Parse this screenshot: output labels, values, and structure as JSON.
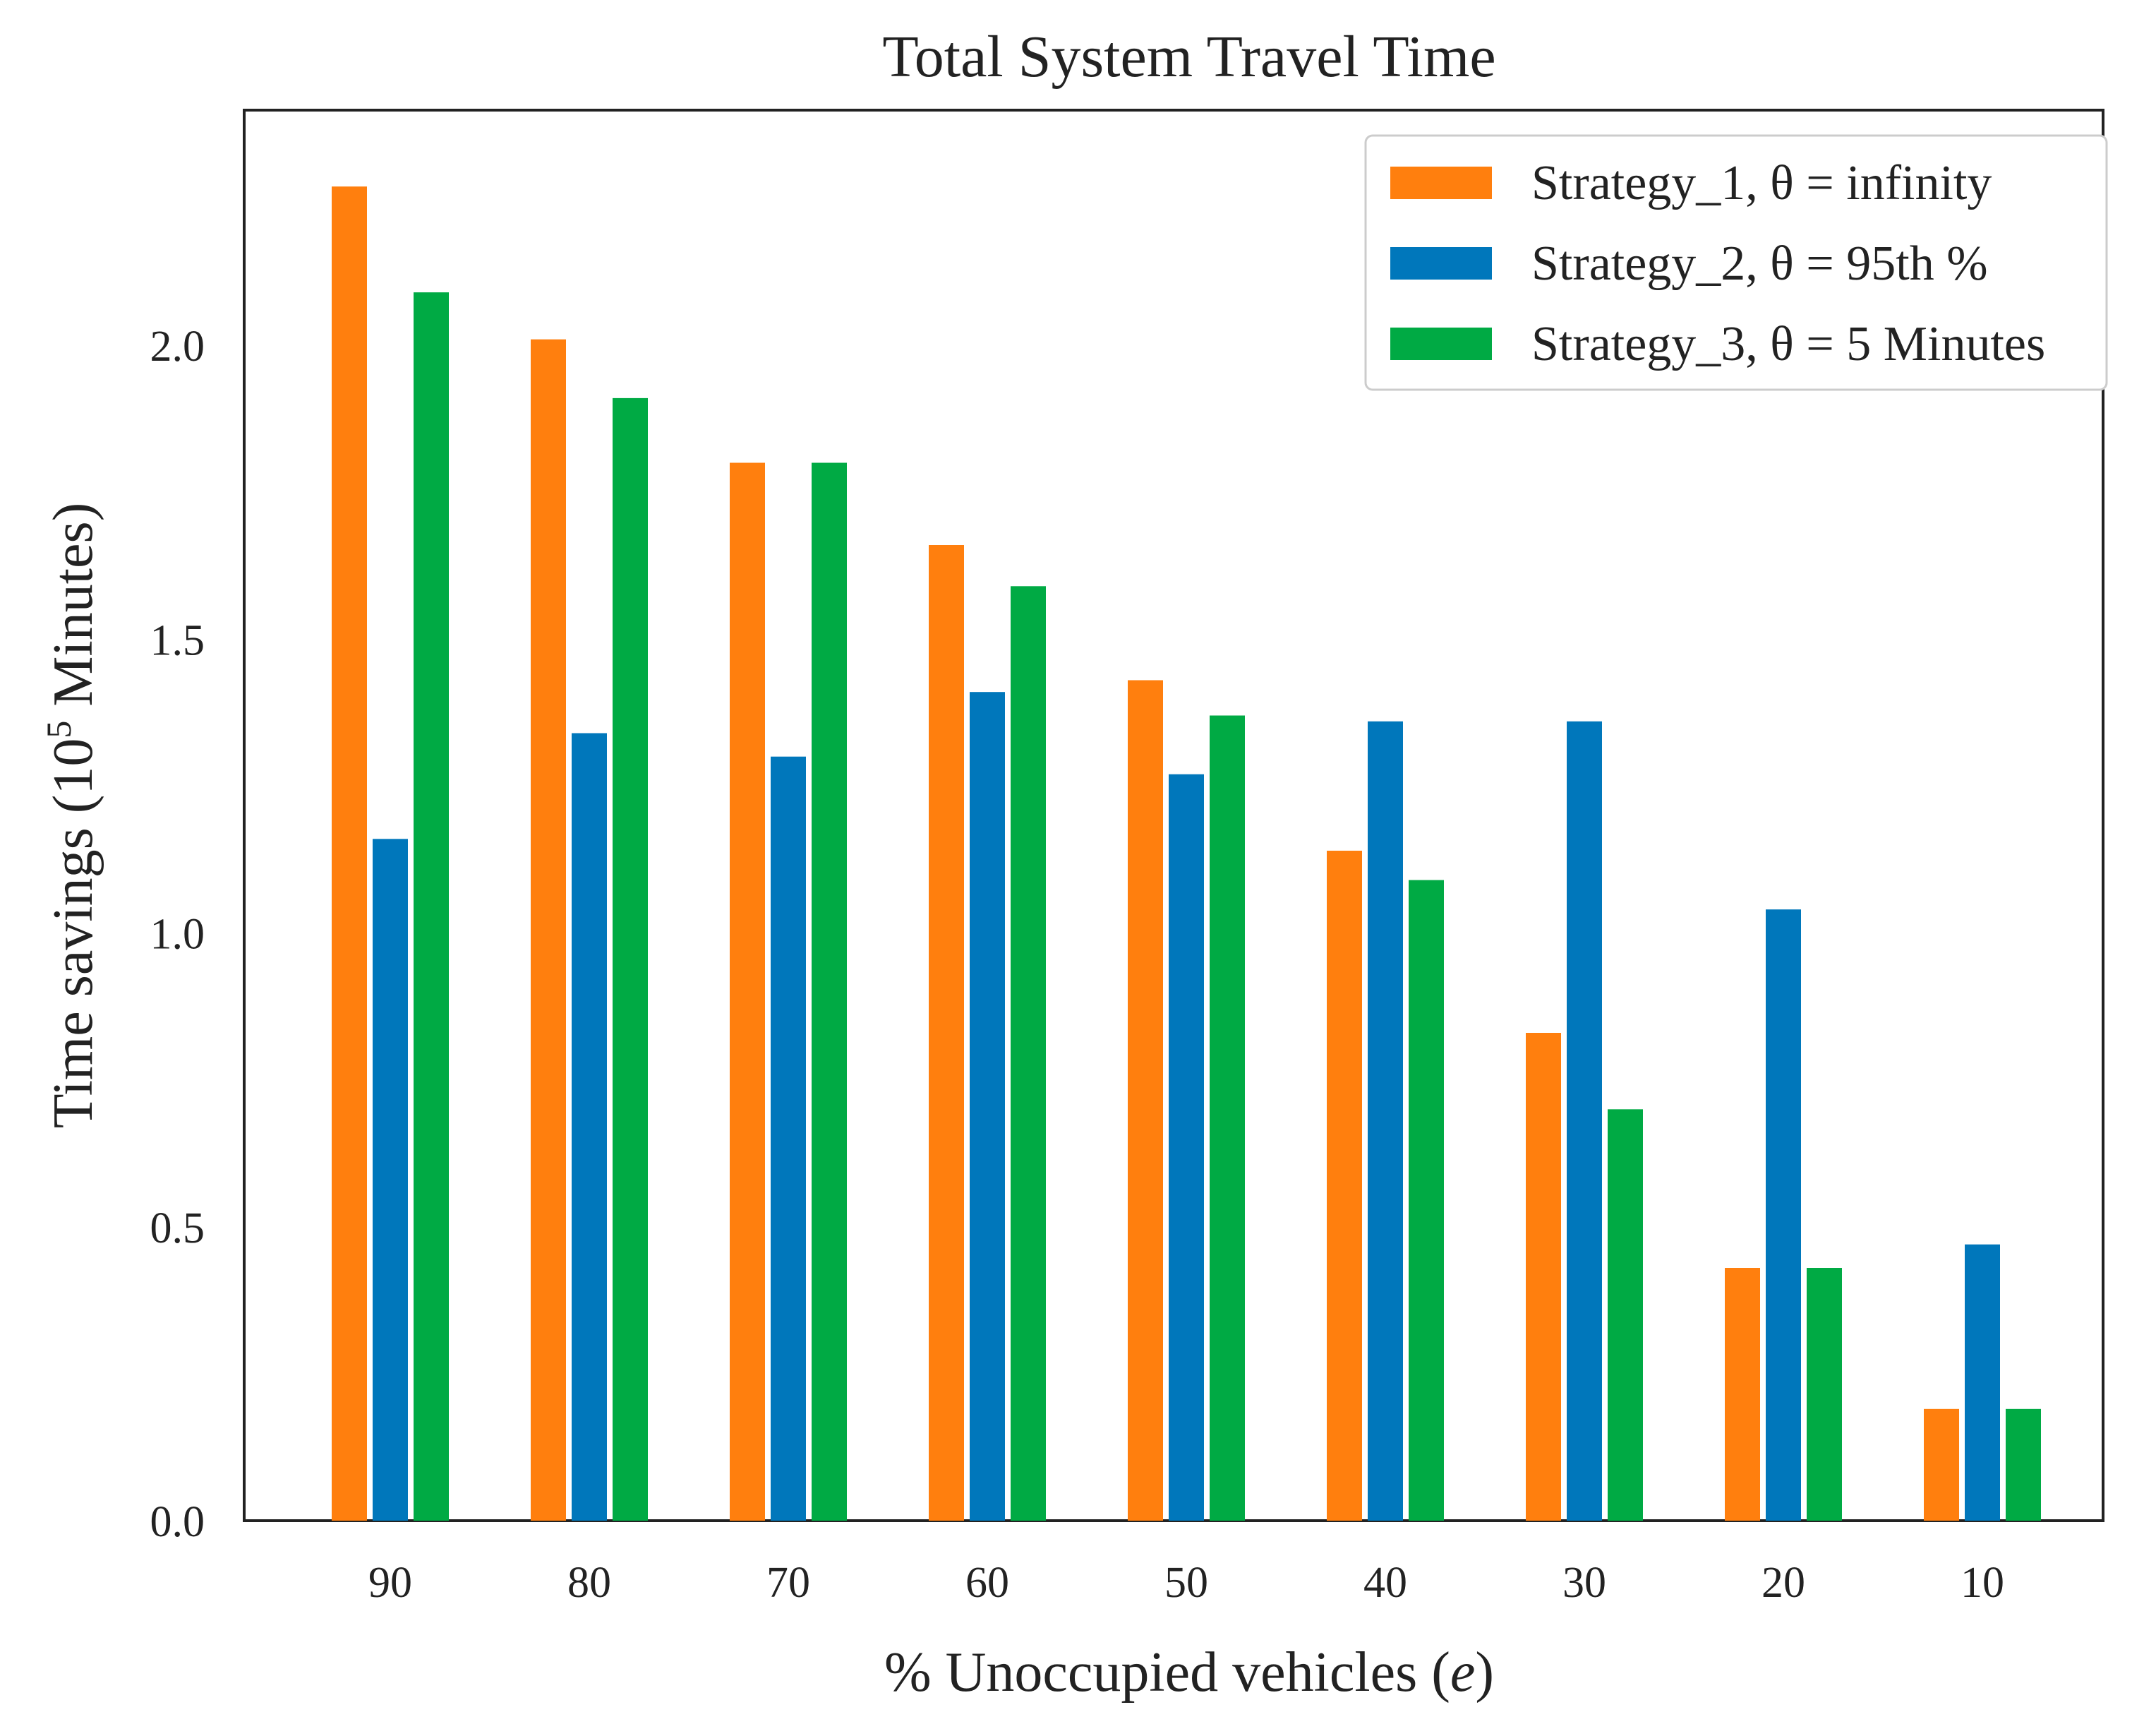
{
  "chart_data": {
    "type": "bar",
    "title": "Total System Travel Time",
    "xlabel": "% Unoccupied vehicles (",
    "xlabel_var": "e",
    "xlabel_close": ")",
    "ylabel_prefix": "Time savings (10",
    "ylabel_exp": "5",
    "ylabel_suffix": " Minutes)",
    "categories": [
      "90",
      "80",
      "70",
      "60",
      "50",
      "40",
      "30",
      "20",
      "10"
    ],
    "series": [
      {
        "name": "Strategy_1, θ = infinity",
        "color": "#ff7f0e",
        "values": [
          2.27,
          2.01,
          1.8,
          1.66,
          1.43,
          1.14,
          0.83,
          0.43,
          0.19
        ]
      },
      {
        "name": "Strategy_2, θ = 95th %",
        "color": "#0077bb",
        "values": [
          1.16,
          1.34,
          1.3,
          1.41,
          1.27,
          1.36,
          1.36,
          1.04,
          0.47
        ]
      },
      {
        "name": "Strategy_3, θ = 5 Minutes",
        "color": "#00aa44",
        "values": [
          2.09,
          1.91,
          1.8,
          1.59,
          1.37,
          1.09,
          0.7,
          0.43,
          0.19
        ]
      }
    ],
    "yticks": [
      "0.0",
      "0.5",
      "1.0",
      "1.5",
      "2.0"
    ],
    "ylim": [
      0,
      2.4
    ],
    "grid": false,
    "legend_position": "top-right"
  }
}
